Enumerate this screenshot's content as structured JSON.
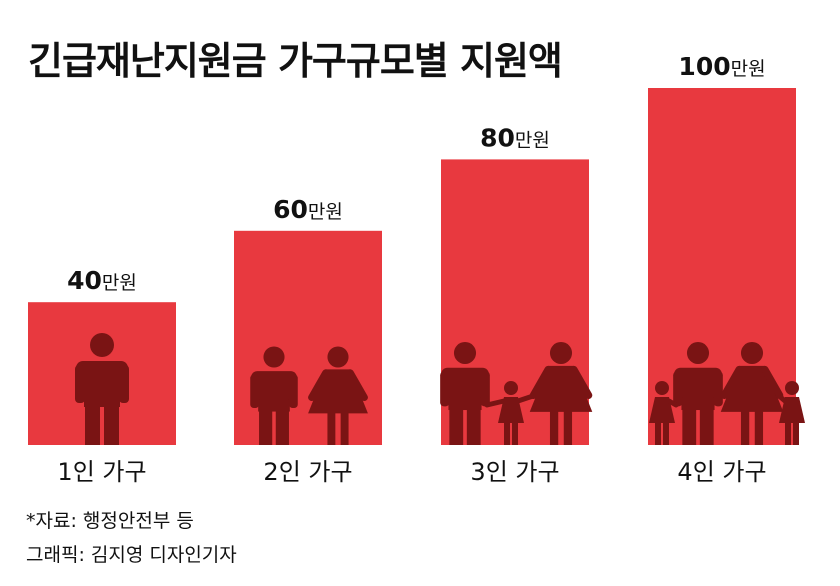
{
  "title": "긴급재난지원금 가구규모별 지원액",
  "chart_data": {
    "type": "bar",
    "title": "긴급재난지원금 가구규모별 지원액",
    "categories": [
      "1인 가구",
      "2인 가구",
      "3인 가구",
      "4인 가구"
    ],
    "values": [
      40,
      60,
      80,
      100
    ],
    "value_labels": [
      {
        "num": "40",
        "unit": "만원"
      },
      {
        "num": "60",
        "unit": "만원"
      },
      {
        "num": "80",
        "unit": "만원"
      },
      {
        "num": "100",
        "unit": "만원"
      }
    ],
    "unit": "만원",
    "ylim": [
      0,
      100
    ],
    "grid": false,
    "legend": "none",
    "bar_color": "#e8393f",
    "figure_color": "#7a1414",
    "figure_icons": [
      [
        "adult-man-icon"
      ],
      [
        "adult-man-icon",
        "adult-woman-icon"
      ],
      [
        "adult-man-icon",
        "child-icon",
        "adult-woman-icon"
      ],
      [
        "child-icon",
        "adult-man-icon",
        "adult-woman-icon",
        "child-icon"
      ]
    ]
  },
  "footer": {
    "source": "*자료: 행정안전부 등",
    "graphic": "그래픽: 김지영 디자인기자"
  }
}
